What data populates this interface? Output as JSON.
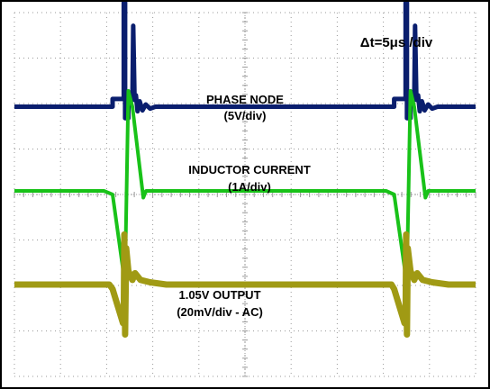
{
  "chart_data": {
    "type": "line",
    "title": "",
    "timebase": "Δt=5μs /div",
    "grid": true,
    "x_divisions": 10,
    "y_divisions": 8,
    "annotations": [
      {
        "lines": [
          "PHASE NODE",
          "(5V/div)"
        ]
      },
      {
        "lines": [
          "INDUCTOR CURRENT",
          "(1A/div)"
        ]
      },
      {
        "lines": [
          "1.05V OUTPUT",
          "(20mV/div - AC)"
        ]
      }
    ],
    "series": [
      {
        "color": "#0a1e6e",
        "zero_div": -1.93,
        "volts_per_div": 5,
        "points_div": [
          [
            0,
            0
          ],
          [
            3.62,
            0
          ],
          [
            3.62,
            -0.17
          ],
          [
            4.03,
            -0.17
          ],
          [
            4.03,
            -3.25
          ],
          [
            4.08,
            -3.25
          ],
          [
            4.08,
            0.25
          ],
          [
            4.2,
            0.25
          ],
          [
            4.2,
            -0.15
          ],
          [
            4.35,
            -0.15
          ],
          [
            4.38,
            -1.78
          ],
          [
            4.43,
            -0.15
          ],
          [
            4.48,
            -0.25
          ],
          [
            4.54,
            0.1
          ],
          [
            4.62,
            -0.12
          ],
          [
            4.72,
            0.08
          ],
          [
            4.84,
            -0.05
          ],
          [
            5.0,
            0.04
          ],
          [
            5.2,
            0
          ],
          [
            14.0,
            0
          ],
          [
            14.0,
            -0.17
          ],
          [
            14.42,
            -0.17
          ],
          [
            14.42,
            -3.25
          ],
          [
            14.47,
            -3.25
          ],
          [
            14.47,
            0.25
          ],
          [
            14.6,
            0.25
          ],
          [
            14.6,
            -0.15
          ],
          [
            14.74,
            -0.15
          ],
          [
            14.77,
            -1.78
          ],
          [
            14.82,
            -0.15
          ],
          [
            14.88,
            -0.25
          ],
          [
            14.94,
            0.1
          ],
          [
            15.02,
            -0.12
          ],
          [
            15.12,
            0.08
          ],
          [
            15.25,
            -0.05
          ],
          [
            15.4,
            0.04
          ],
          [
            15.6,
            0
          ],
          [
            17.0,
            0
          ]
        ]
      },
      {
        "color": "#19c219",
        "zero_div": -0.08,
        "amps_per_div": 1,
        "points_div": [
          [
            0,
            0
          ],
          [
            3.3,
            0
          ],
          [
            3.62,
            0.08
          ],
          [
            4.03,
            1.85
          ],
          [
            4.08,
            1.85
          ],
          [
            4.2,
            -2.2
          ],
          [
            4.35,
            -1.85
          ],
          [
            4.75,
            0.15
          ],
          [
            4.85,
            0
          ],
          [
            13.7,
            0
          ],
          [
            14.0,
            0.08
          ],
          [
            14.42,
            1.85
          ],
          [
            14.47,
            1.85
          ],
          [
            14.6,
            -2.2
          ],
          [
            14.74,
            -1.85
          ],
          [
            15.15,
            0.15
          ],
          [
            15.25,
            0
          ],
          [
            17.0,
            0
          ]
        ]
      },
      {
        "color": "#a09a14",
        "zero_div": 1.98,
        "millivolts_per_div": 20,
        "points_div": [
          [
            0,
            0
          ],
          [
            3.5,
            0
          ],
          [
            3.62,
            0.1
          ],
          [
            4.0,
            0.85
          ],
          [
            4.03,
            0.7
          ],
          [
            4.05,
            -1.1
          ],
          [
            4.08,
            1.1
          ],
          [
            4.12,
            -0.8
          ],
          [
            4.2,
            -0.3
          ],
          [
            4.35,
            -0.1
          ],
          [
            4.45,
            -0.25
          ],
          [
            4.65,
            -0.1
          ],
          [
            5.0,
            -0.05
          ],
          [
            5.6,
            0
          ],
          [
            13.9,
            0
          ],
          [
            14.0,
            0.1
          ],
          [
            14.38,
            0.85
          ],
          [
            14.42,
            0.7
          ],
          [
            14.44,
            -1.1
          ],
          [
            14.47,
            1.1
          ],
          [
            14.5,
            -0.8
          ],
          [
            14.6,
            -0.3
          ],
          [
            14.74,
            -0.1
          ],
          [
            14.85,
            -0.25
          ],
          [
            15.05,
            -0.1
          ],
          [
            15.4,
            -0.05
          ],
          [
            16.0,
            0
          ],
          [
            17.0,
            0
          ]
        ]
      }
    ]
  }
}
